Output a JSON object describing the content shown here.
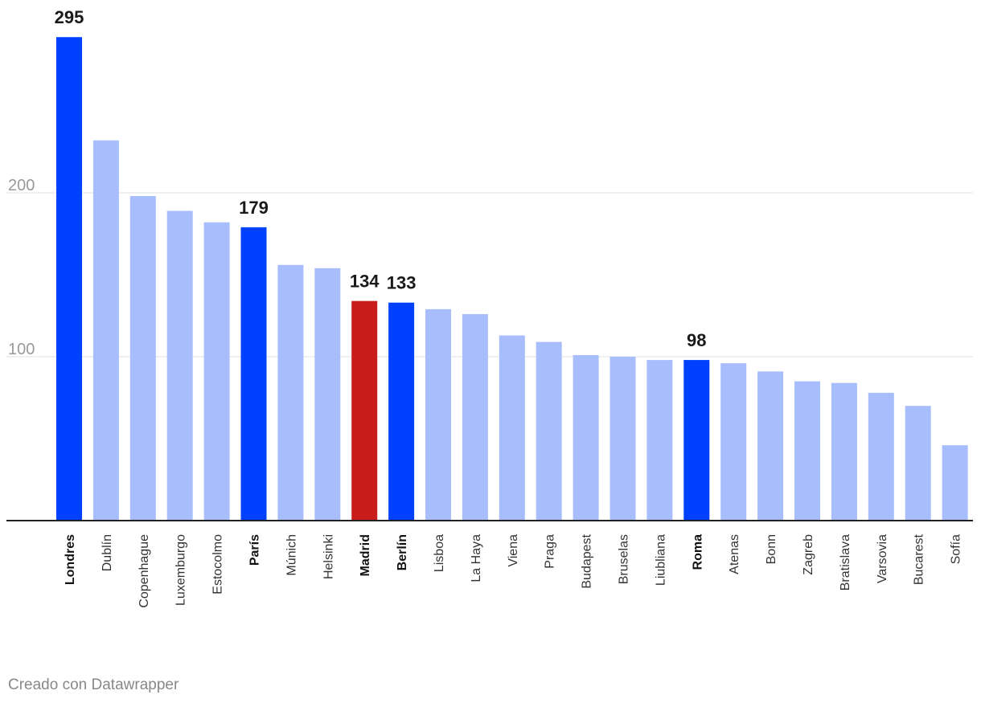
{
  "chart_data": {
    "type": "bar",
    "categories": [
      "Londres",
      "Dublín",
      "Copenhague",
      "Luxemburgo",
      "Estocolmo",
      "París",
      "Múnich",
      "Helsinki",
      "Madrid",
      "Berlín",
      "Lisboa",
      "La Haya",
      "Viena",
      "Praga",
      "Budapest",
      "Bruselas",
      "Liubliana",
      "Roma",
      "Atenas",
      "Bonn",
      "Zagreb",
      "Bratislava",
      "Varsovia",
      "Bucarest",
      "Sofía"
    ],
    "values": [
      295,
      232,
      198,
      189,
      182,
      179,
      156,
      154,
      134,
      133,
      129,
      126,
      113,
      109,
      101,
      100,
      98,
      98,
      96,
      91,
      85,
      84,
      78,
      70,
      46
    ],
    "highlighted": [
      "Londres",
      "París",
      "Madrid",
      "Berlín",
      "Roma"
    ],
    "data_labels": {
      "Londres": "295",
      "París": "179",
      "Madrid": "134",
      "Berlín": "133",
      "Roma": "98"
    },
    "y_ticks": [
      100,
      200
    ],
    "ylim": [
      0,
      295
    ],
    "grid": true,
    "colors": {
      "default_bar": "#a8bdfc",
      "highlight_bar": "#0040ff",
      "madrid_bar": "#c91d1d",
      "gridline": "#e0e0e0",
      "axis": "#222222"
    }
  },
  "credit": "Creado con Datawrapper"
}
